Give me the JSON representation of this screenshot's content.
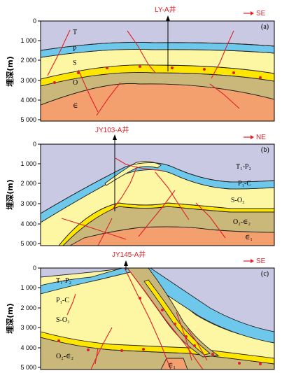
{
  "y_axis_label": "埋深(m)",
  "depth_ticks": [
    "0",
    "1 000",
    "2 000",
    "3 000",
    "4 000",
    "5 000"
  ],
  "colors": {
    "sky": "#c9c9e4",
    "blue_layer": "#6ec8ec",
    "yellow_layer": "#fdf6a3",
    "shale": "#ffe600",
    "olive": "#c9b879",
    "orange": "#f4a06e",
    "fault": "#e0202a",
    "dot": "#e0202a"
  },
  "panels": [
    {
      "id": "a",
      "tag": "(a)",
      "well": "LY-A井",
      "direction": "SE",
      "strata": [
        "T",
        "P",
        "S",
        "O",
        "∈"
      ]
    },
    {
      "id": "b",
      "tag": "(b)",
      "well": "JY103-A井",
      "direction": "NE",
      "strata": [
        "T₁-P₂",
        "P₁-C",
        "S-O₃",
        "O₂-∈₂",
        "∈₁"
      ]
    },
    {
      "id": "c",
      "tag": "(c)",
      "well": "JY145-A井",
      "direction": "SE",
      "strata": [
        "T₁-P₂",
        "P₁-C",
        "S-O₃",
        "O₂-∈₂",
        "∈₁"
      ]
    }
  ]
}
